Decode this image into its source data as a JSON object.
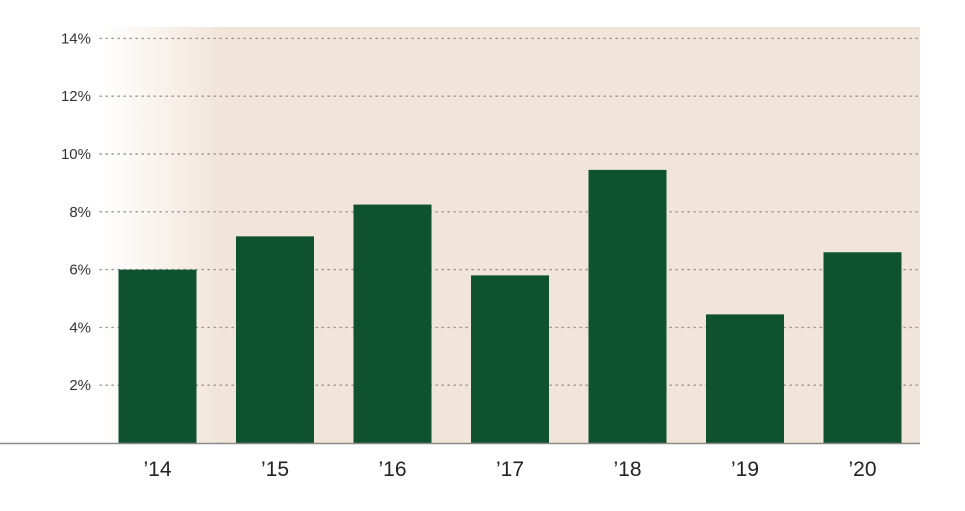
{
  "chart_data": {
    "type": "bar",
    "categories": [
      "’14",
      "’15",
      "’16",
      "’17",
      "’18",
      "’19",
      "’20"
    ],
    "values": [
      6.0,
      7.15,
      8.25,
      5.8,
      9.45,
      4.45,
      6.6
    ],
    "title": "",
    "xlabel": "",
    "ylabel": "",
    "ylim": [
      0,
      14
    ],
    "yticks": [
      2,
      4,
      6,
      8,
      10,
      12,
      14
    ],
    "ytick_labels": [
      "2%",
      "4%",
      "6%",
      "8%",
      "10%",
      "12%",
      "14%"
    ],
    "grid": true,
    "grid_style": "dotted",
    "legend": "none",
    "colors": {
      "bar": "#0e5230",
      "plot_background": "#f1e4d8",
      "grid": "#9a9a9a",
      "baseline": "#8a8a8a"
    }
  }
}
